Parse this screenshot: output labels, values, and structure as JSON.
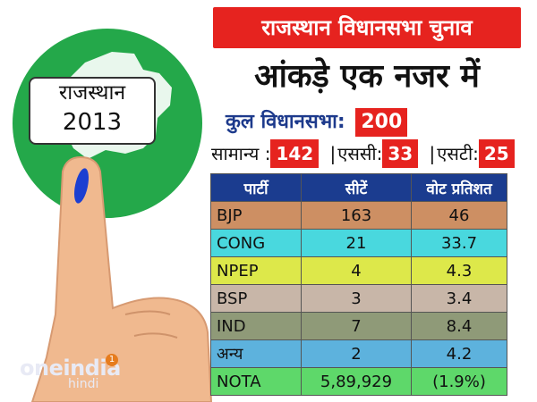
{
  "banner": {
    "title": "राजस्थान विधानसभा चुनाव"
  },
  "subtitle": "आंकड़े एक नजर में",
  "state_label": {
    "line1": "राजस्थान",
    "line2": "2013"
  },
  "total": {
    "label": "कुल विधानसभा:",
    "value": "200"
  },
  "categories": [
    {
      "label": "सामान्य :",
      "value": "142"
    },
    {
      "label": "एससी:",
      "value": "33"
    },
    {
      "label": "एसटी:",
      "value": "25"
    }
  ],
  "table": {
    "headers": [
      "पार्टी",
      "सीटें",
      "वोट प्रतिशत"
    ],
    "rows": [
      {
        "party": "BJP",
        "seats": "163",
        "vote": "46",
        "color": "#cd8f63"
      },
      {
        "party": "CONG",
        "seats": "21",
        "vote": "33.7",
        "color": "#49d8de"
      },
      {
        "party": "NPEP",
        "seats": "4",
        "vote": "4.3",
        "color": "#dde84a"
      },
      {
        "party": "BSP",
        "seats": "3",
        "vote": "3.4",
        "color": "#c8b6a8"
      },
      {
        "party": "IND",
        "seats": "7",
        "vote": "8.4",
        "color": "#8f9a78"
      },
      {
        "party": "अन्य",
        "seats": "2",
        "vote": "4.2",
        "color": "#5db2dd"
      },
      {
        "party": "NOTA",
        "seats": "5,89,929",
        "vote": "(1.9%)",
        "color": "#5ed86a"
      }
    ]
  },
  "logo": {
    "name": "oneindia",
    "sub": "hindi",
    "badge": "1"
  },
  "colors": {
    "banner": "#e6231f",
    "header": "#1b3c8f",
    "circle": "#24a84a",
    "ink": "#1c3fd1"
  }
}
